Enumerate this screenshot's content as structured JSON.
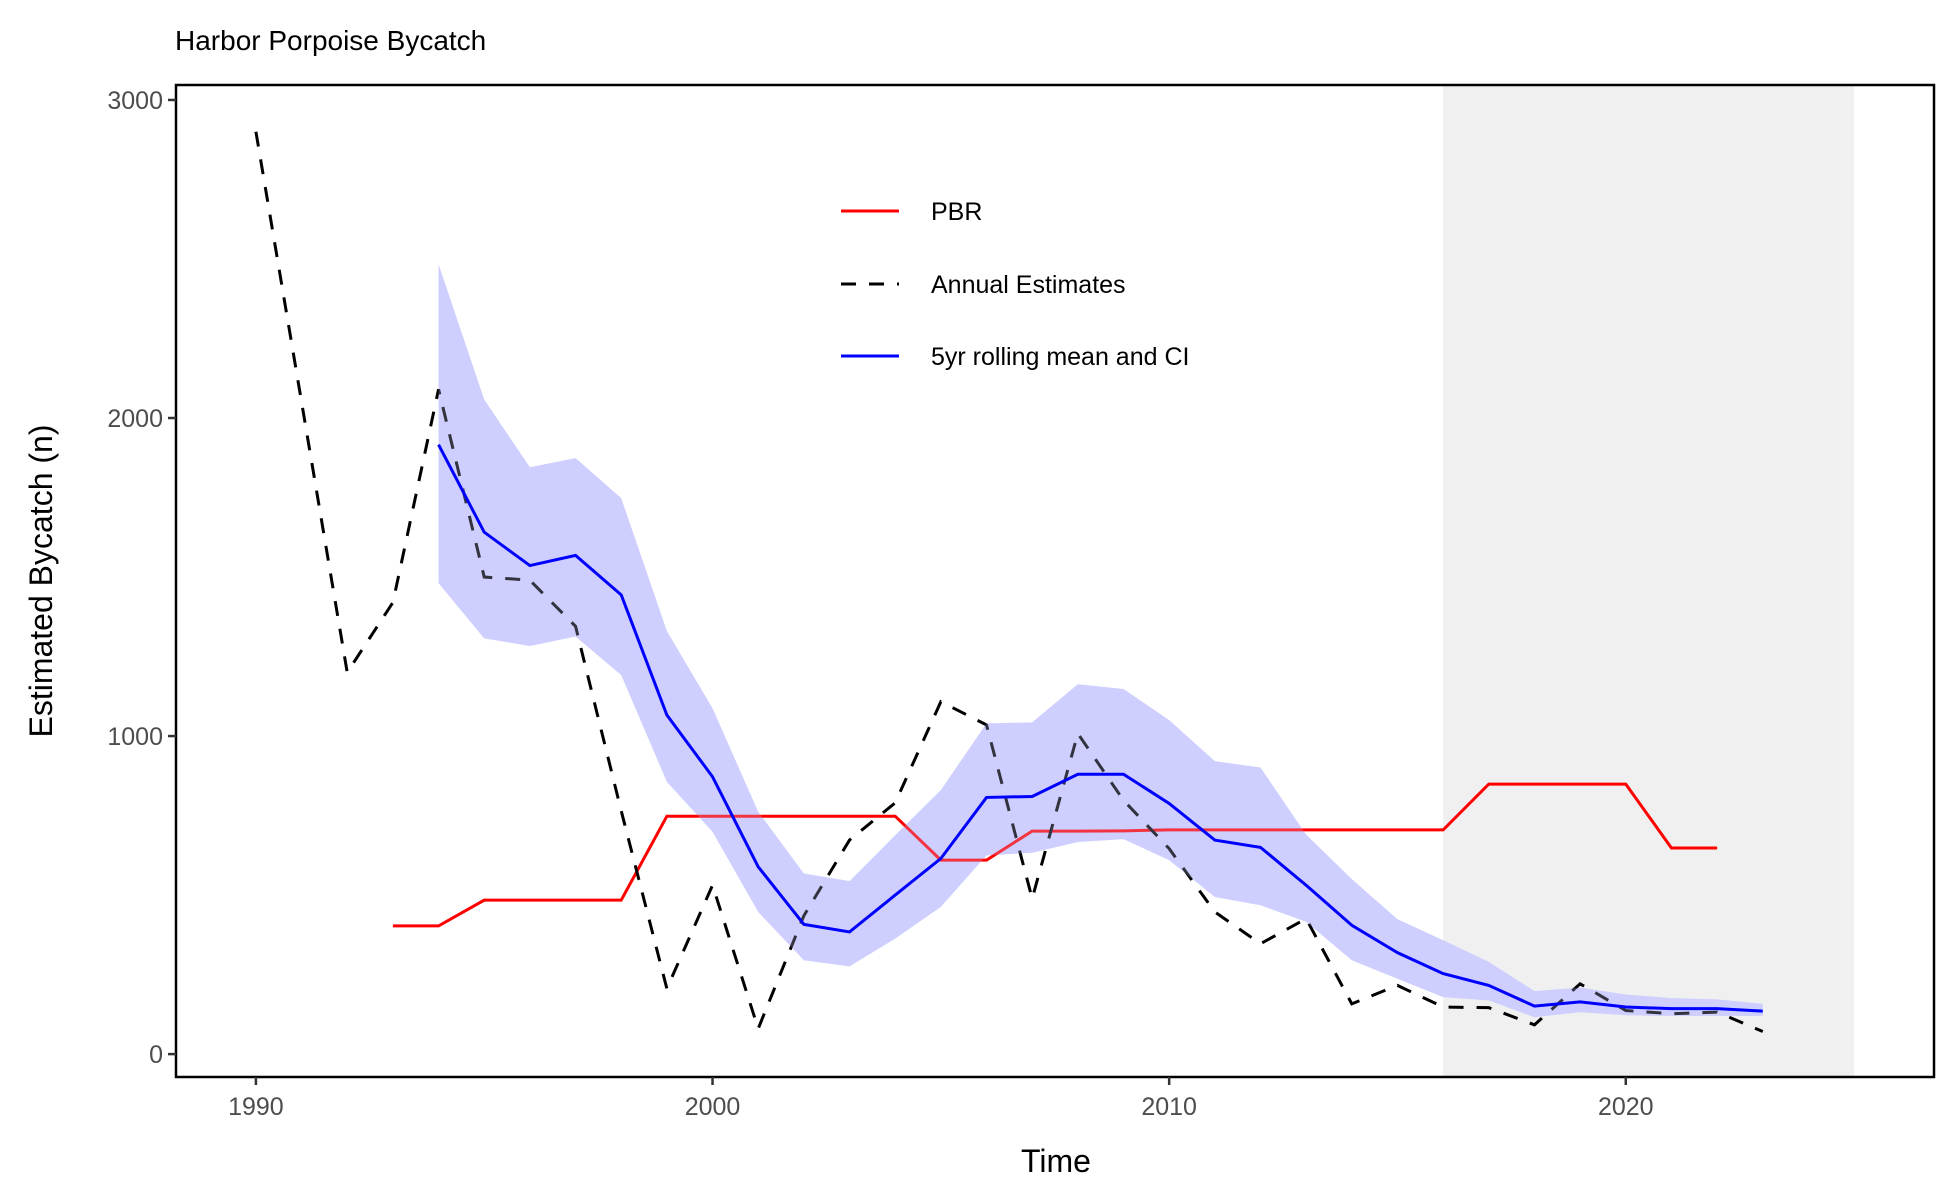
{
  "chart_data": {
    "type": "line",
    "title": "Harbor Porpoise Bycatch",
    "xlabel": "Time",
    "ylabel": "Estimated Bycatch (n)",
    "xlim": [
      1988.25,
      2026.75
    ],
    "ylim": [
      -72,
      3047
    ],
    "x_ticks": [
      1990,
      2000,
      2010,
      2020
    ],
    "x_tick_labels": [
      "1990",
      "2000",
      "2010",
      "2020"
    ],
    "y_ticks": [
      0,
      1000,
      2000,
      3000
    ],
    "y_tick_labels": [
      "0",
      "1000",
      "2000",
      "3000"
    ],
    "grid": false,
    "legend_position": "top-center",
    "shaded_region": {
      "x_start": 2016,
      "x_end": 2025,
      "color": "#f0f0f0"
    },
    "series": [
      {
        "name": "PBR",
        "legend_label": "PBR",
        "style": "solid",
        "color": "#ff0000",
        "x": [
          1993,
          1994,
          1995,
          1996,
          1997,
          1998,
          1999,
          2000,
          2001,
          2002,
          2003,
          2004,
          2005,
          2006,
          2007,
          2008,
          2009,
          2010,
          2011,
          2012,
          2013,
          2014,
          2015,
          2016,
          2017,
          2018,
          2019,
          2020,
          2021,
          2022
        ],
        "values": [
          403,
          403,
          484,
          484,
          484,
          484,
          748,
          748,
          748,
          748,
          748,
          748,
          610,
          610,
          701,
          701,
          702,
          705,
          705,
          705,
          705,
          705,
          705,
          705,
          849,
          849,
          849,
          849,
          648,
          648
        ]
      },
      {
        "name": "Annual Estimates",
        "legend_label": "Annual Estimates",
        "style": "dashed",
        "color": "#000000",
        "x": [
          1990,
          1991,
          1992,
          1993,
          1994,
          1995,
          1996,
          1997,
          1998,
          1999,
          2000,
          2001,
          2002,
          2003,
          2004,
          2005,
          2006,
          2007,
          2008,
          2009,
          2010,
          2011,
          2012,
          2013,
          2014,
          2015,
          2016,
          2017,
          2018,
          2019,
          2020,
          2021,
          2022,
          2023
        ],
        "values": [
          2900,
          2050,
          1200,
          1420,
          2090,
          1500,
          1490,
          1345,
          765,
          206,
          531,
          80,
          435,
          673,
          790,
          1108,
          1035,
          489,
          1008,
          798,
          646,
          447,
          347,
          426,
          158,
          216,
          148,
          146,
          92,
          221,
          137,
          127,
          132,
          71
        ]
      },
      {
        "name": "5yr rolling mean",
        "legend_label": "5yr rolling mean and CI",
        "style": "solid",
        "color": "#0000ff",
        "x": [
          1994,
          1995,
          1996,
          1997,
          1998,
          1999,
          2000,
          2001,
          2002,
          2003,
          2004,
          2005,
          2006,
          2007,
          2008,
          2009,
          2010,
          2011,
          2012,
          2013,
          2014,
          2015,
          2016,
          2017,
          2018,
          2019,
          2020,
          2021,
          2022,
          2023
        ],
        "values": [
          1916,
          1641,
          1536,
          1568,
          1444,
          1066,
          872,
          589,
          408,
          384,
          500,
          615,
          807,
          810,
          880,
          880,
          788,
          673,
          650,
          531,
          405,
          319,
          253,
          216,
          151,
          164,
          148,
          143,
          143,
          135
        ],
        "ci_upper": [
          2483,
          2058,
          1845,
          1874,
          1748,
          1330,
          1087,
          762,
          568,
          544,
          688,
          830,
          1040,
          1043,
          1163,
          1148,
          1050,
          921,
          901,
          690,
          550,
          424,
          358,
          290,
          198,
          209,
          187,
          176,
          172,
          158
        ],
        "ci_lower": [
          1481,
          1307,
          1283,
          1313,
          1192,
          856,
          699,
          447,
          295,
          276,
          363,
          463,
          625,
          633,
          667,
          676,
          610,
          494,
          468,
          416,
          295,
          237,
          179,
          169,
          116,
          132,
          122,
          120,
          120,
          120
        ],
        "ci_color": "#ccccff"
      }
    ]
  }
}
